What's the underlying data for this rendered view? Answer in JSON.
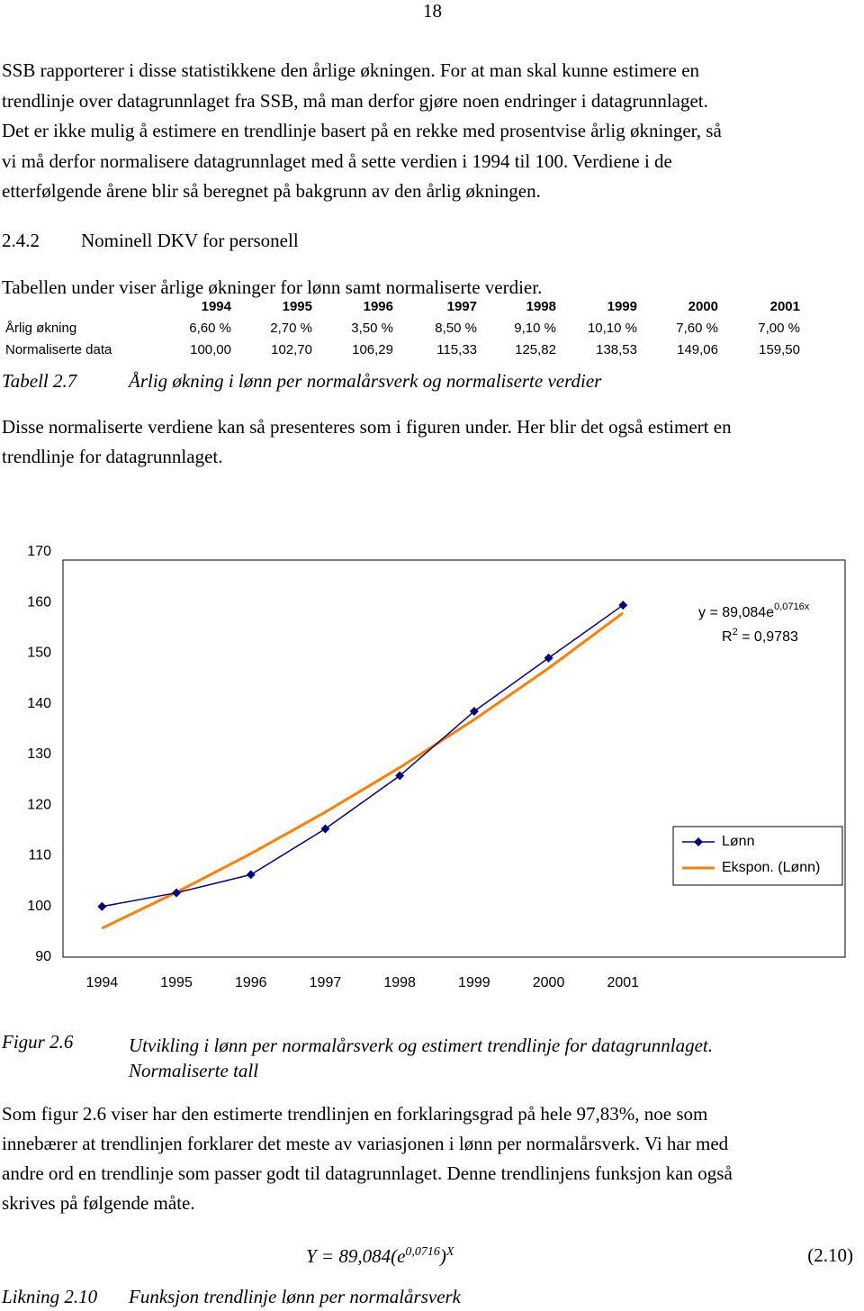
{
  "page_number": "18",
  "paragraph_1": [
    "SSB rapporterer i disse statistikkene den årlige økningen. For at man skal kunne estimere en",
    "trendlinje over datagrunnlaget fra SSB, må man derfor gjøre noen endringer i datagrunnlaget.",
    "Det er ikke mulig å estimere en trendlinje basert på en rekke med prosentvise årlig økninger, så",
    "vi må derfor normalisere datagrunnlaget med å sette verdien i 1994 til 100. Verdiene i de",
    "etterfølgende årene blir så beregnet på bakgrunn av den årlig økningen."
  ],
  "section": {
    "number": "2.4.2",
    "title": "Nominell DKV for personell"
  },
  "paragraph_2": [
    "Tabellen under viser årlige økninger for lønn samt normaliserte verdier."
  ],
  "table": {
    "columns": [
      "1994",
      "1995",
      "1996",
      "1997",
      "1998",
      "1999",
      "2000",
      "2001"
    ],
    "rows": [
      {
        "label": "Årlig økning",
        "cells": [
          "6,60 %",
          "2,70 %",
          "3,50 %",
          "8,50 %",
          "9,10 %",
          "10,10 %",
          "7,60 %",
          "7,00 %"
        ]
      },
      {
        "label": "Normaliserte data",
        "cells": [
          "100,00",
          "102,70",
          "106,29",
          "115,33",
          "125,82",
          "138,53",
          "149,06",
          "159,50"
        ]
      }
    ]
  },
  "table_caption": {
    "label": "Tabell 2.7",
    "text": "Årlig økning i lønn per normalårsverk og normaliserte verdier"
  },
  "paragraph_3": [
    "Disse normaliserte verdiene kan så presenteres som i figuren under. Her blir det også estimert en",
    "trendlinje for datagrunnlaget."
  ],
  "chart_data": {
    "type": "line",
    "categories": [
      "1994",
      "1995",
      "1996",
      "1997",
      "1998",
      "1999",
      "2000",
      "2001"
    ],
    "series": [
      {
        "name": "Lønn",
        "color": "#000080",
        "marker": "diamond",
        "values": [
          100,
          102.7,
          106.29,
          115.33,
          125.82,
          138.53,
          149.06,
          159.5
        ]
      },
      {
        "name": "Ekspon. (Lønn)",
        "color": "#ff8000",
        "values": [
          95.7,
          102.8,
          110.43,
          118.63,
          127.43,
          136.89,
          147.05,
          157.96
        ]
      }
    ],
    "ylim": [
      90,
      170
    ],
    "yticks": [
      90,
      100,
      110,
      120,
      130,
      140,
      150,
      160,
      170
    ],
    "grid": false,
    "legend": "right",
    "annotations": {
      "equation": {
        "base": "y = 89,084e",
        "exponent": "0,0716x"
      },
      "r_squared": {
        "base": "R",
        "exponent": "2",
        "rest": " = 0,9783"
      }
    }
  },
  "figure_caption": {
    "label": "Figur 2.6",
    "lines": [
      "Utvikling i lønn per normalårsverk og estimert trendlinje for datagrunnlaget.",
      "Normaliserte tall"
    ]
  },
  "paragraph_4": [
    "Som figur 2.6 viser har den estimerte trendlinjen en forklaringsgrad på hele 97,83%, noe som",
    "innebærer at trendlinjen forklarer det meste av variasjonen i lønn per normalårsverk. Vi har med",
    "andre ord en trendlinje som passer godt til datagrunnlaget. Denne trendlinjens funksjon kan også",
    "skrives på følgende måte."
  ],
  "equation": {
    "lhs": "Y = 89,084(e",
    "exponent": "0,0716",
    "close": ")",
    "outer_exponent": "X",
    "number": "(2.10)"
  },
  "equation_caption": {
    "label": "Likning 2.10",
    "text": "Funksjon trendlinje lønn per normalårsverk"
  }
}
